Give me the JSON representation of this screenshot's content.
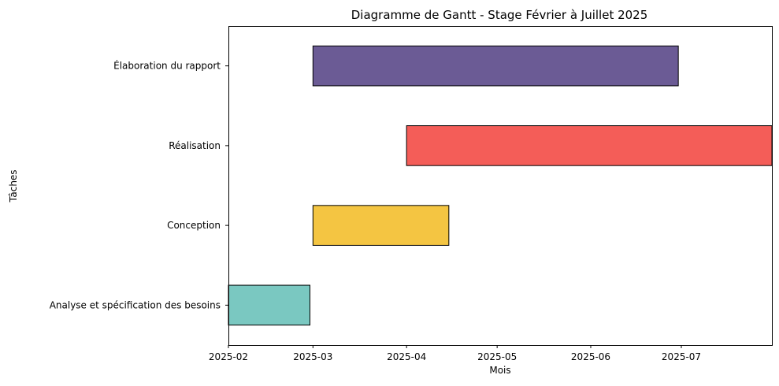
{
  "chart_data": {
    "type": "gantt",
    "title": "Diagramme de Gantt - Stage Février à Juillet 2025",
    "xlabel": "Mois",
    "ylabel": "Tâches",
    "x_axis_type": "date",
    "xlim": [
      "2025-02-01",
      "2025-07-31"
    ],
    "x_ticks": [
      "2025-02",
      "2025-03",
      "2025-04",
      "2025-05",
      "2025-06",
      "2025-07"
    ],
    "grid": false,
    "tasks": [
      {
        "name": "Analyse et spécification des besoins",
        "start": "2025-02-01",
        "end": "2025-02-28",
        "color": "#7ac8c1"
      },
      {
        "name": "Conception",
        "start": "2025-03-01",
        "end": "2025-04-15",
        "color": "#f4c542"
      },
      {
        "name": "Réalisation",
        "start": "2025-04-01",
        "end": "2025-07-31",
        "color": "#f45d58"
      },
      {
        "name": "Élaboration du rapport",
        "start": "2025-03-01",
        "end": "2025-06-30",
        "color": "#6b5b95"
      }
    ]
  }
}
